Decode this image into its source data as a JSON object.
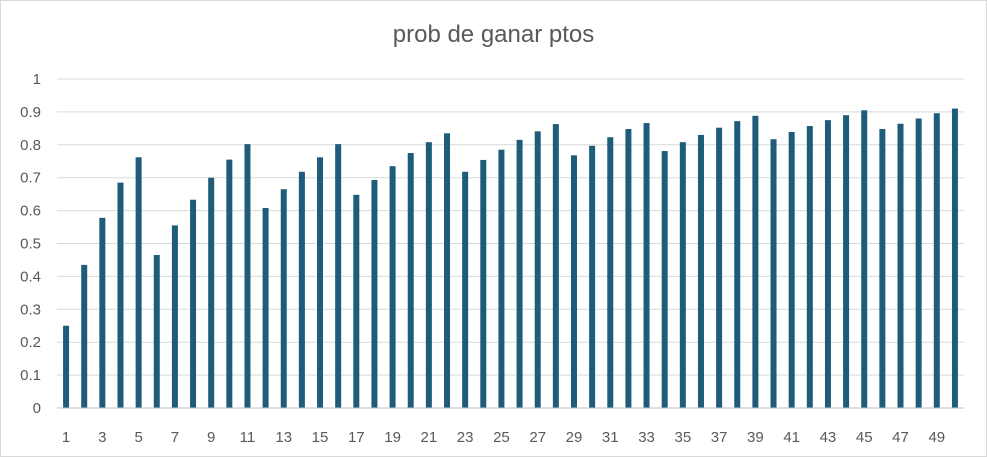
{
  "chart_data": {
    "type": "bar",
    "title": "prob de ganar ptos",
    "xlabel": "",
    "ylabel": "",
    "ylim": [
      0,
      1
    ],
    "y_ticks": [
      0,
      0.1,
      0.2,
      0.3,
      0.4,
      0.5,
      0.6,
      0.7,
      0.8,
      0.9,
      1
    ],
    "y_tick_labels": [
      "0",
      "0.1",
      "0.2",
      "0.3",
      "0.4",
      "0.5",
      "0.6",
      "0.7",
      "0.8",
      "0.9",
      "1"
    ],
    "categories": [
      1,
      2,
      3,
      4,
      5,
      6,
      7,
      8,
      9,
      10,
      11,
      12,
      13,
      14,
      15,
      16,
      17,
      18,
      19,
      20,
      21,
      22,
      23,
      24,
      25,
      26,
      27,
      28,
      29,
      30,
      31,
      32,
      33,
      34,
      35,
      36,
      37,
      38,
      39,
      40,
      41,
      42,
      43,
      44,
      45,
      46,
      47,
      48,
      49,
      50
    ],
    "x_tick_labels": [
      "1",
      "3",
      "5",
      "7",
      "9",
      "11",
      "13",
      "15",
      "17",
      "19",
      "21",
      "23",
      "25",
      "27",
      "29",
      "31",
      "33",
      "35",
      "37",
      "39",
      "41",
      "43",
      "45",
      "47",
      "49"
    ],
    "values": [
      0.25,
      0.435,
      0.578,
      0.685,
      0.762,
      0.465,
      0.555,
      0.633,
      0.7,
      0.755,
      0.802,
      0.608,
      0.665,
      0.718,
      0.762,
      0.802,
      0.648,
      0.693,
      0.735,
      0.775,
      0.808,
      0.835,
      0.718,
      0.754,
      0.785,
      0.815,
      0.841,
      0.863,
      0.768,
      0.797,
      0.823,
      0.848,
      0.866,
      0.781,
      0.808,
      0.83,
      0.852,
      0.872,
      0.888,
      0.817,
      0.839,
      0.857,
      0.875,
      0.89,
      0.905,
      0.848,
      0.864,
      0.88,
      0.896,
      0.91
    ],
    "grid": true,
    "legend": "none",
    "colors": {
      "bar": "#1f5c7a",
      "grid": "#d9d9d9",
      "text": "#595959"
    }
  }
}
